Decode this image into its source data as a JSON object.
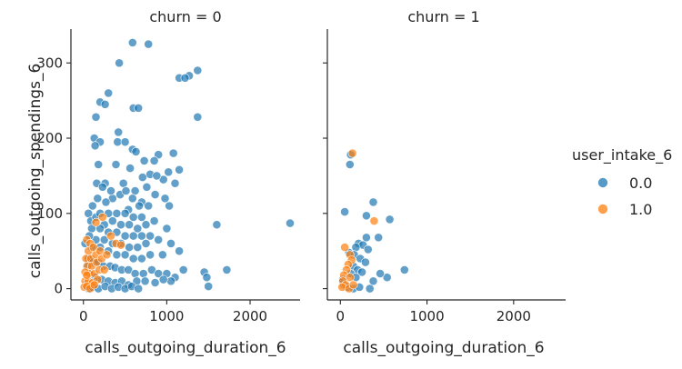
{
  "chart_data": {
    "type": "scatter",
    "facets": [
      {
        "title": "churn = 0",
        "xlabel": "calls_outgoing_duration_6",
        "ylabel": "calls_outgoing_spendings_6",
        "series": [
          {
            "name": "0.0",
            "points": [
              [
                590,
                327
              ],
              [
                780,
                325
              ],
              [
                430,
                300
              ],
              [
                1370,
                290
              ],
              [
                1270,
                283
              ],
              [
                1150,
                280
              ],
              [
                1220,
                280
              ],
              [
                300,
                260
              ],
              [
                200,
                248
              ],
              [
                260,
                245
              ],
              [
                150,
                228
              ],
              [
                600,
                240
              ],
              [
                660,
                240
              ],
              [
                1370,
                228
              ],
              [
                420,
                208
              ],
              [
                130,
                200
              ],
              [
                200,
                195
              ],
              [
                140,
                190
              ],
              [
                410,
                195
              ],
              [
                500,
                195
              ],
              [
                590,
                185
              ],
              [
                630,
                182
              ],
              [
                390,
                165
              ],
              [
                730,
                170
              ],
              [
                900,
                178
              ],
              [
                850,
                170
              ],
              [
                1080,
                180
              ],
              [
                180,
                165
              ],
              [
                560,
                160
              ],
              [
                1020,
                155
              ],
              [
                1150,
                158
              ],
              [
                800,
                152
              ],
              [
                710,
                148
              ],
              [
                960,
                145
              ],
              [
                1100,
                140
              ],
              [
                260,
                140
              ],
              [
                160,
                140
              ],
              [
                230,
                135
              ],
              [
                480,
                140
              ],
              [
                620,
                130
              ],
              [
                860,
                125
              ],
              [
                980,
                120
              ],
              [
                1030,
                110
              ],
              [
                110,
                110
              ],
              [
                350,
                120
              ],
              [
                700,
                115
              ],
              [
                780,
                110
              ],
              [
                540,
                105
              ],
              [
                60,
                100
              ],
              [
                90,
                90
              ],
              [
                150,
                95
              ],
              [
                200,
                100
              ],
              [
                300,
                100
              ],
              [
                400,
                100
              ],
              [
                500,
                100
              ],
              [
                600,
                95
              ],
              [
                700,
                95
              ],
              [
                250,
                85
              ],
              [
                350,
                90
              ],
              [
                450,
                85
              ],
              [
                550,
                85
              ],
              [
                650,
                80
              ],
              [
                750,
                85
              ],
              [
                850,
                90
              ],
              [
                100,
                80
              ],
              [
                200,
                80
              ],
              [
                300,
                75
              ],
              [
                400,
                75
              ],
              [
                500,
                70
              ],
              [
                600,
                70
              ],
              [
                700,
                70
              ],
              [
                800,
                70
              ],
              [
                1000,
                80
              ],
              [
                1600,
                85
              ],
              [
                2480,
                87
              ],
              [
                150,
                65
              ],
              [
                250,
                65
              ],
              [
                350,
                60
              ],
              [
                450,
                60
              ],
              [
                550,
                55
              ],
              [
                650,
                55
              ],
              [
                750,
                60
              ],
              [
                900,
                65
              ],
              [
                1050,
                60
              ],
              [
                100,
                55
              ],
              [
                200,
                55
              ],
              [
                300,
                50
              ],
              [
                400,
                45
              ],
              [
                500,
                45
              ],
              [
                600,
                40
              ],
              [
                700,
                40
              ],
              [
                800,
                45
              ],
              [
                950,
                45
              ],
              [
                1150,
                50
              ],
              [
                60,
                40
              ],
              [
                120,
                35
              ],
              [
                180,
                35
              ],
              [
                240,
                30
              ],
              [
                320,
                30
              ],
              [
                380,
                28
              ],
              [
                460,
                25
              ],
              [
                540,
                25
              ],
              [
                620,
                20
              ],
              [
                720,
                20
              ],
              [
                820,
                25
              ],
              [
                900,
                20
              ],
              [
                1000,
                20
              ],
              [
                1100,
                15
              ],
              [
                1200,
                25
              ],
              [
                1050,
                10
              ],
              [
                80,
                20
              ],
              [
                140,
                15
              ],
              [
                220,
                12
              ],
              [
                300,
                10
              ],
              [
                380,
                8
              ],
              [
                460,
                10
              ],
              [
                540,
                5
              ],
              [
                640,
                10
              ],
              [
                740,
                10
              ],
              [
                860,
                8
              ],
              [
                960,
                12
              ],
              [
                1450,
                22
              ],
              [
                1480,
                15
              ],
              [
                1500,
                3
              ],
              [
                1720,
                25
              ],
              [
                30,
                5
              ],
              [
                60,
                0
              ],
              [
                110,
                2
              ],
              [
                180,
                0
              ],
              [
                260,
                3
              ],
              [
                340,
                0
              ],
              [
                420,
                2
              ],
              [
                500,
                0
              ],
              [
                580,
                3
              ],
              [
                660,
                0
              ],
              [
                20,
                60
              ],
              [
                40,
                30
              ],
              [
                70,
                70
              ],
              [
                170,
                120
              ],
              [
                270,
                115
              ],
              [
                330,
                130
              ],
              [
                440,
                125
              ],
              [
                510,
                130
              ],
              [
                590,
                120
              ],
              [
                670,
                110
              ],
              [
                760,
                135
              ],
              [
                880,
                150
              ]
            ]
          },
          {
            "name": "1.0",
            "points": [
              [
                40,
                65
              ],
              [
                80,
                60
              ],
              [
                60,
                50
              ],
              [
                120,
                55
              ],
              [
                30,
                40
              ],
              [
                90,
                40
              ],
              [
                150,
                45
              ],
              [
                200,
                50
              ],
              [
                50,
                30
              ],
              [
                100,
                30
              ],
              [
                160,
                35
              ],
              [
                220,
                40
              ],
              [
                280,
                45
              ],
              [
                70,
                20
              ],
              [
                130,
                20
              ],
              [
                190,
                25
              ],
              [
                250,
                25
              ],
              [
                20,
                10
              ],
              [
                60,
                10
              ],
              [
                110,
                8
              ],
              [
                170,
                12
              ],
              [
                10,
                2
              ],
              [
                40,
                3
              ],
              [
                80,
                0
              ],
              [
                130,
                5
              ],
              [
                330,
                70
              ],
              [
                390,
                60
              ],
              [
                450,
                58
              ],
              [
                150,
                88
              ],
              [
                230,
                95
              ],
              [
                20,
                22
              ],
              [
                40,
                18
              ]
            ]
          }
        ]
      },
      {
        "title": "churn = 1",
        "xlabel": "calls_outgoing_duration_6",
        "ylabel": "",
        "series": [
          {
            "name": "0.0",
            "points": [
              [
                120,
                178
              ],
              [
                110,
                165
              ],
              [
                380,
                115
              ],
              [
                50,
                102
              ],
              [
                300,
                97
              ],
              [
                570,
                92
              ],
              [
                440,
                68
              ],
              [
                300,
                68
              ],
              [
                210,
                60
              ],
              [
                260,
                58
              ],
              [
                180,
                55
              ],
              [
                320,
                52
              ],
              [
                100,
                48
              ],
              [
                160,
                45
              ],
              [
                230,
                40
              ],
              [
                290,
                35
              ],
              [
                150,
                30
              ],
              [
                200,
                25
              ],
              [
                250,
                22
              ],
              [
                120,
                20
              ],
              [
                180,
                15
              ],
              [
                540,
                15
              ],
              [
                740,
                25
              ],
              [
                460,
                20
              ],
              [
                380,
                10
              ],
              [
                40,
                5
              ],
              [
                80,
                2
              ],
              [
                150,
                0
              ],
              [
                220,
                2
              ],
              [
                30,
                12
              ],
              [
                340,
                0
              ]
            ]
          },
          {
            "name": "1.0",
            "points": [
              [
                140,
                180
              ],
              [
                390,
                90
              ],
              [
                50,
                55
              ],
              [
                110,
                45
              ],
              [
                130,
                38
              ],
              [
                90,
                32
              ],
              [
                70,
                25
              ],
              [
                40,
                18
              ],
              [
                110,
                15
              ],
              [
                30,
                10
              ],
              [
                60,
                5
              ],
              [
                20,
                2
              ],
              [
                100,
                0
              ],
              [
                150,
                5
              ]
            ]
          }
        ]
      }
    ],
    "x_ticks": [
      0,
      1000,
      2000
    ],
    "y_ticks": [
      0,
      100,
      200,
      300
    ],
    "xlim": [
      -150,
      2600
    ],
    "ylim": [
      -15,
      345
    ],
    "legend": {
      "title": "user_intake_6",
      "placement": "right",
      "entries": [
        {
          "label": "0.0",
          "color": "#1f77b4"
        },
        {
          "label": "1.0",
          "color": "#ff7f0e"
        }
      ]
    },
    "grid": false,
    "marker_alpha": 0.7
  }
}
